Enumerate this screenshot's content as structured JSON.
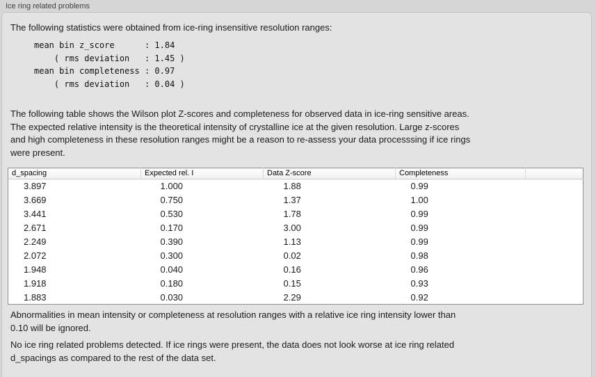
{
  "panel": {
    "title": "Ice ring related problems"
  },
  "intro": "The following statistics were obtained from ice-ring insensitive resolution ranges:",
  "stats_block": "mean bin z_score      : 1.84\n    ( rms deviation   : 1.45 )\nmean bin completeness : 0.97\n    ( rms deviation   : 0.04 )",
  "description": {
    "lines": [
      "The following table shows the Wilson plot Z-scores and completeness for observed data in ice-ring sensitive areas.",
      "The expected relative intensity is the theoretical intensity of crystalline ice at the given resolution. Large z-scores",
      "and high completeness in these resolution ranges might be a reason to re-assess your data processsing if ice rings",
      "were present."
    ]
  },
  "table": {
    "columns": [
      "d_spacing",
      "Expected rel. I",
      "Data Z-score",
      "Completeness",
      ""
    ],
    "rows": [
      [
        "3.897",
        "1.000",
        "1.88",
        "0.99"
      ],
      [
        "3.669",
        "0.750",
        "1.37",
        "1.00"
      ],
      [
        "3.441",
        "0.530",
        "1.78",
        "0.99"
      ],
      [
        "2.671",
        "0.170",
        "3.00",
        "0.99"
      ],
      [
        "2.249",
        "0.390",
        "1.13",
        "0.99"
      ],
      [
        "2.072",
        "0.300",
        "0.02",
        "0.98"
      ],
      [
        "1.948",
        "0.040",
        "0.16",
        "0.96"
      ],
      [
        "1.918",
        "0.180",
        "0.15",
        "0.93"
      ],
      [
        "1.883",
        "0.030",
        "2.29",
        "0.92"
      ]
    ]
  },
  "ignore_note": {
    "lines": [
      "Abnormalities in mean intensity or completeness at resolution ranges with a relative ice ring intensity lower than",
      "0.10 will be ignored."
    ]
  },
  "conclusion": {
    "lines": [
      "No ice ring related problems detected. If ice rings were present, the data does not look worse at ice ring related",
      "d_spacings as compared to the rest of the data set."
    ]
  }
}
